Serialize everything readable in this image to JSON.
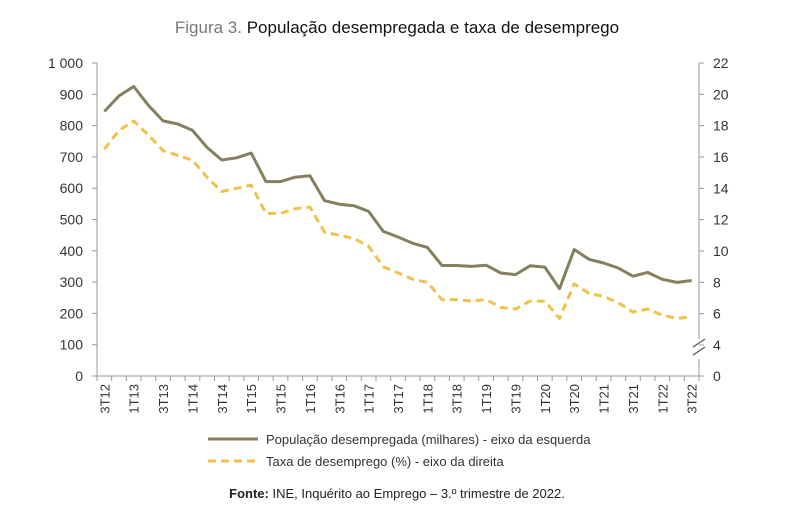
{
  "title": {
    "prefix": "Figura 3.",
    "text": "População desempregada e taxa de desemprego"
  },
  "source": {
    "label": "Fonte:",
    "text": "INE, Inquérito ao Emprego – 3.º trimestre de 2022."
  },
  "colors": {
    "unemployed": "#857f5c",
    "rate": "#f0c24a",
    "axis": "#9a9a9a"
  },
  "chart_data": {
    "type": "line",
    "title": "Figura 3. População desempregada e taxa de desemprego",
    "x": [
      "3T12",
      "4T12",
      "1T13",
      "2T13",
      "3T13",
      "4T13",
      "1T14",
      "2T14",
      "3T14",
      "4T14",
      "1T15",
      "2T15",
      "3T15",
      "4T15",
      "1T16",
      "2T16",
      "3T16",
      "4T16",
      "1T17",
      "2T17",
      "3T17",
      "4T17",
      "1T18",
      "2T18",
      "3T18",
      "4T18",
      "1T19",
      "2T19",
      "3T19",
      "4T19",
      "1T20",
      "2T20",
      "3T20",
      "4T20",
      "1T21",
      "2T21",
      "3T21",
      "4T21",
      "1T22",
      "2T22",
      "3T22"
    ],
    "x_tick_labels": [
      "3T12",
      "1T13",
      "3T13",
      "1T14",
      "3T14",
      "1T15",
      "3T15",
      "1T16",
      "3T16",
      "1T17",
      "3T17",
      "1T18",
      "3T18",
      "1T19",
      "3T19",
      "1T20",
      "3T20",
      "1T21",
      "3T21",
      "1T22",
      "3T22"
    ],
    "left_axis": {
      "ylim": [
        0,
        1000
      ],
      "ticks": [
        0,
        100,
        200,
        300,
        400,
        500,
        600,
        700,
        800,
        900,
        1000
      ],
      "tick_labels": [
        "0",
        "100",
        "200",
        "300",
        "400",
        "500",
        "600",
        "700",
        "800",
        "900",
        "1 000"
      ]
    },
    "right_axis": {
      "ylim": [
        0,
        22
      ],
      "axis_break": true,
      "ticks": [
        0,
        4,
        6,
        8,
        10,
        12,
        14,
        16,
        18,
        20,
        22
      ],
      "tick_labels": [
        "0",
        "4",
        "6",
        "8",
        "10",
        "12",
        "14",
        "16",
        "18",
        "20",
        "22"
      ]
    },
    "series": [
      {
        "name": "População desempregada (milhares) - eixo da esquerda",
        "axis": "left",
        "style": "solid",
        "values": [
          845,
          895,
          925,
          865,
          815,
          805,
          785,
          730,
          690,
          697,
          712,
          621,
          621,
          635,
          640,
          560,
          549,
          544,
          526,
          462,
          444,
          424,
          411,
          353,
          353,
          350,
          354,
          329,
          324,
          352,
          348,
          279,
          404,
          373,
          361,
          345,
          319,
          331,
          309,
          299,
          305
        ]
      },
      {
        "name": "Taxa de desemprego (%) - eixo da direita",
        "axis": "right",
        "style": "dashed",
        "values": [
          16.5,
          17.7,
          18.3,
          17.4,
          16.4,
          16.1,
          15.8,
          14.7,
          13.8,
          14.0,
          14.2,
          12.4,
          12.4,
          12.7,
          12.8,
          11.2,
          11.0,
          10.8,
          10.3,
          9.0,
          8.6,
          8.2,
          8.0,
          6.9,
          6.9,
          6.8,
          6.9,
          6.4,
          6.3,
          6.8,
          6.8,
          5.7,
          7.9,
          7.3,
          7.1,
          6.7,
          6.1,
          6.3,
          5.9,
          5.7,
          5.8
        ]
      }
    ]
  }
}
